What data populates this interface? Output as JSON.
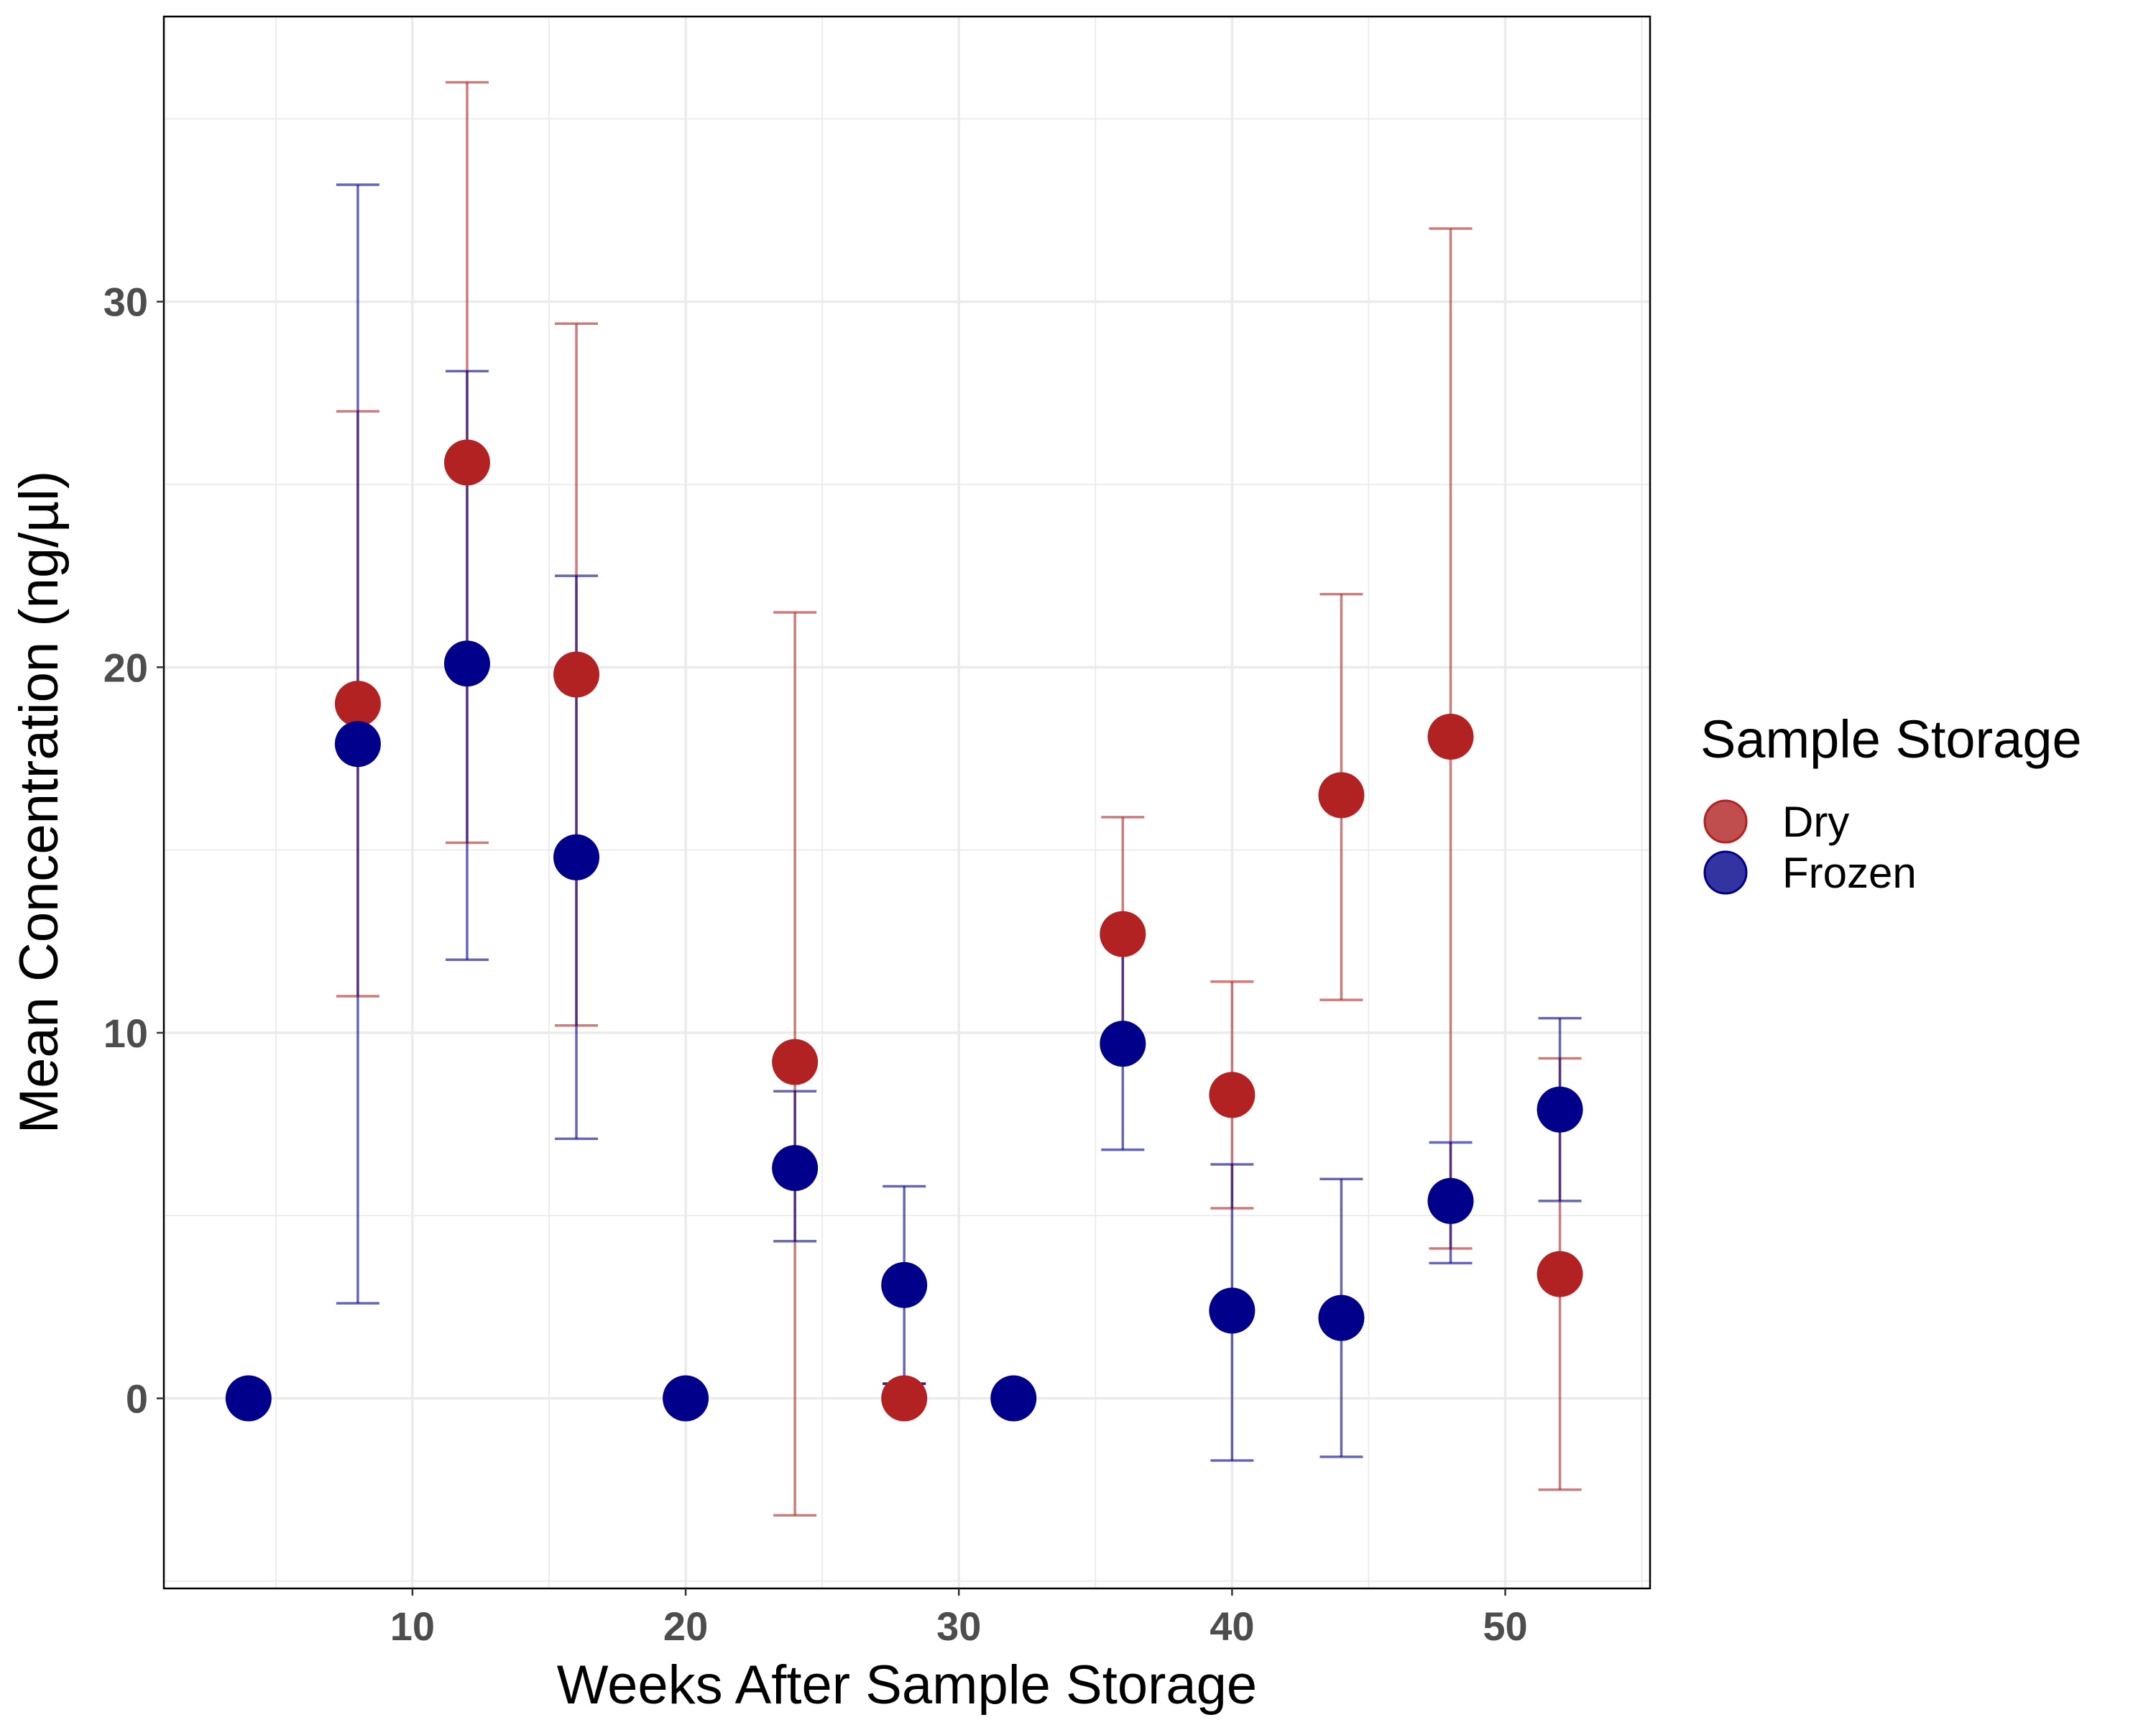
{
  "chart_data": {
    "type": "scatter",
    "xlabel": "Weeks After Sample Storage",
    "ylabel": "Mean Concentration (ng/µl)",
    "xlim": [
      0.9,
      55.3
    ],
    "ylim": [
      -5.2,
      37.8
    ],
    "x_ticks": [
      10,
      20,
      30,
      40,
      50
    ],
    "y_ticks": [
      0,
      10,
      20,
      30
    ],
    "x_tick_labels": [
      "10",
      "20",
      "30",
      "40",
      "50"
    ],
    "y_tick_labels": [
      "0",
      "10",
      "20",
      "30"
    ],
    "grid": true,
    "legend": {
      "title": "Sample Storage",
      "position": "right",
      "entries": [
        "Dry",
        "Frozen"
      ]
    },
    "series": [
      {
        "name": "Dry",
        "color": "#b22222",
        "points": [
          {
            "x": 8,
            "y": 19.0,
            "low": 11.0,
            "high": 27.0
          },
          {
            "x": 12,
            "y": 25.6,
            "low": 15.2,
            "high": 36.0
          },
          {
            "x": 16,
            "y": 19.8,
            "low": 10.2,
            "high": 29.4
          },
          {
            "x": 24,
            "y": 9.2,
            "low": -3.2,
            "high": 21.5
          },
          {
            "x": 28,
            "y": 0.0,
            "low": 0.4,
            "high": 0.4
          },
          {
            "x": 36,
            "y": 12.7,
            "low": 9.5,
            "high": 15.9
          },
          {
            "x": 40,
            "y": 8.3,
            "low": 5.2,
            "high": 11.4
          },
          {
            "x": 44,
            "y": 16.5,
            "low": 10.9,
            "high": 22.0
          },
          {
            "x": 48,
            "y": 18.1,
            "low": 4.1,
            "high": 32.0
          },
          {
            "x": 52,
            "y": 3.4,
            "low": -2.5,
            "high": 9.3
          }
        ]
      },
      {
        "name": "Frozen",
        "color": "#00008b",
        "points": [
          {
            "x": 4,
            "y": 0.0
          },
          {
            "x": 8,
            "y": 17.9,
            "low": 2.6,
            "high": 33.2
          },
          {
            "x": 12,
            "y": 20.1,
            "low": 12.0,
            "high": 28.1
          },
          {
            "x": 16,
            "y": 14.8,
            "low": 7.1,
            "high": 22.5
          },
          {
            "x": 20,
            "y": 0.0
          },
          {
            "x": 24,
            "y": 6.3,
            "low": 4.3,
            "high": 8.4
          },
          {
            "x": 28,
            "y": 3.1,
            "low": 0.4,
            "high": 5.8
          },
          {
            "x": 32,
            "y": 0.0
          },
          {
            "x": 36,
            "y": 9.7,
            "low": 6.8,
            "high": 12.6
          },
          {
            "x": 40,
            "y": 2.4,
            "low": -1.7,
            "high": 6.4
          },
          {
            "x": 44,
            "y": 2.2,
            "low": -1.6,
            "high": 6.0
          },
          {
            "x": 48,
            "y": 5.4,
            "low": 3.7,
            "high": 7.0
          },
          {
            "x": 52,
            "y": 7.9,
            "low": 5.4,
            "high": 10.4
          }
        ]
      }
    ]
  }
}
